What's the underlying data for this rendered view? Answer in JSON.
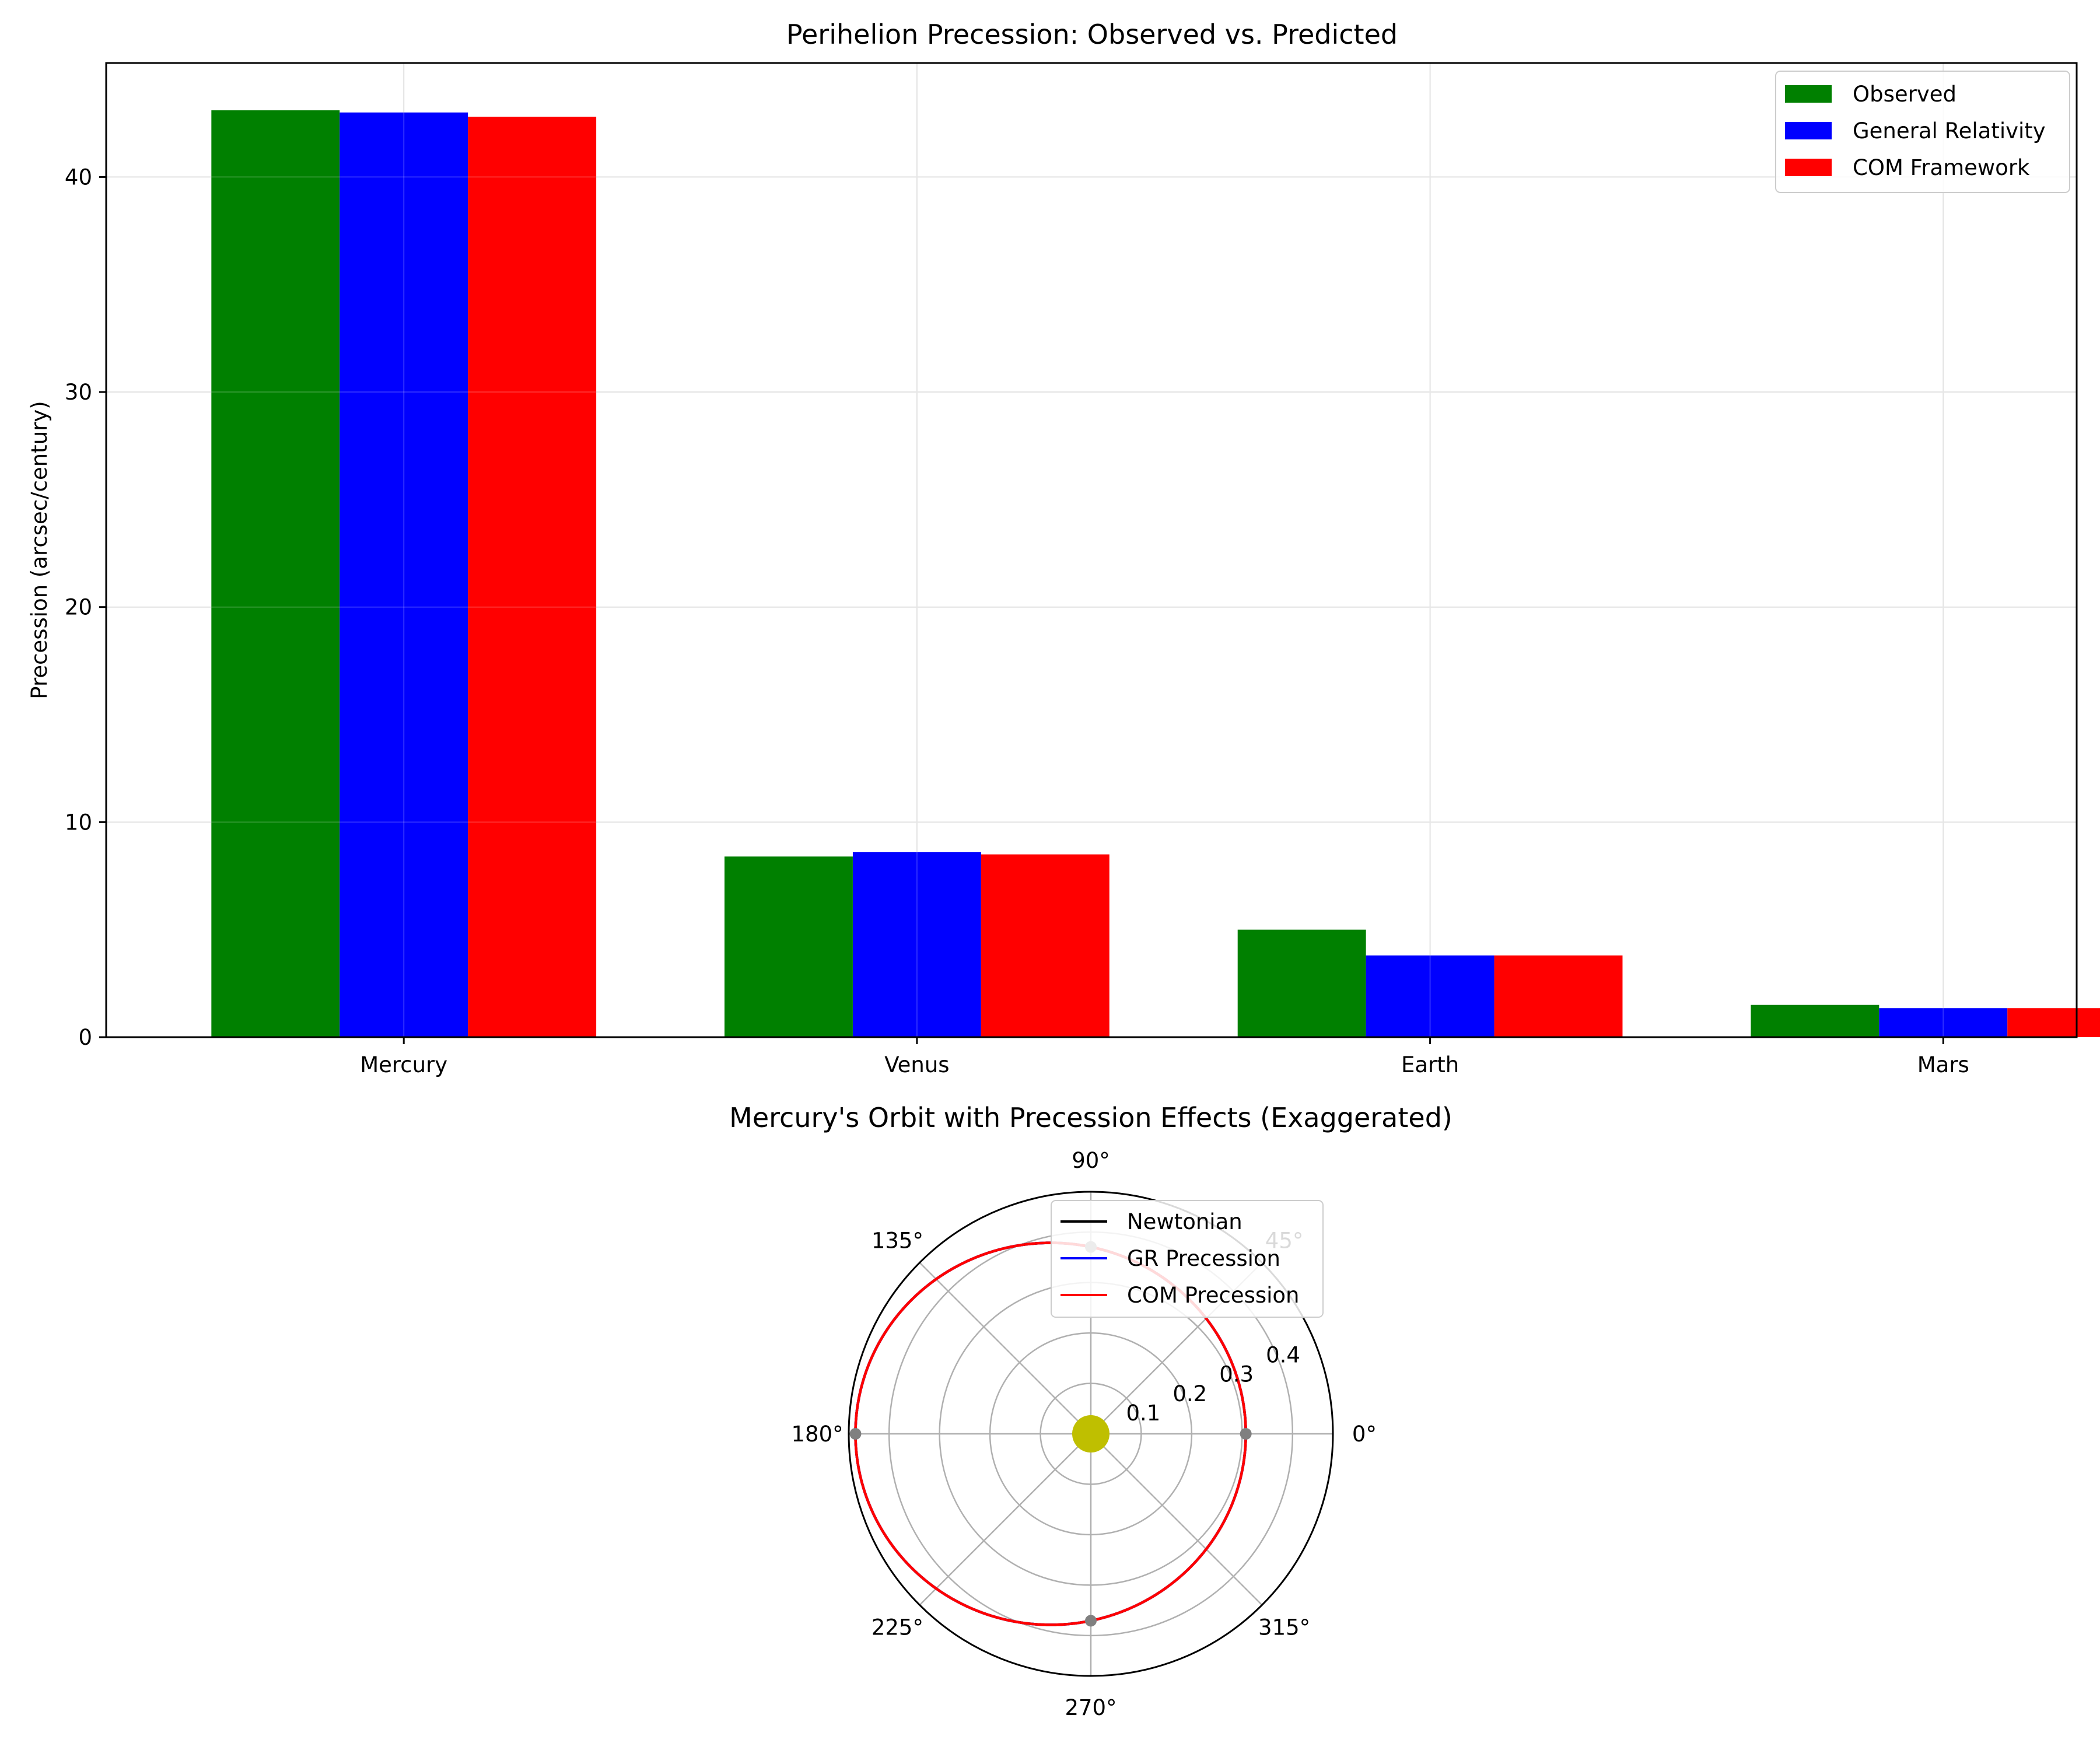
{
  "chart_data": [
    {
      "type": "bar",
      "title": "Perihelion Precession: Observed vs. Predicted",
      "xlabel": "",
      "ylabel": "Precession (arcsec/century)",
      "categories": [
        "Mercury",
        "Venus",
        "Earth",
        "Mars"
      ],
      "series": [
        {
          "name": "Observed",
          "color": "#008000",
          "values": [
            43.1,
            8.4,
            5.0,
            1.5
          ]
        },
        {
          "name": "General Relativity",
          "color": "#0000ff",
          "values": [
            43.0,
            8.6,
            3.8,
            1.35
          ]
        },
        {
          "name": "COM Framework",
          "color": "#ff0000",
          "values": [
            42.8,
            8.5,
            3.8,
            1.35
          ]
        }
      ],
      "ylim": [
        0,
        45.3
      ],
      "yticks": [
        0,
        10,
        20,
        30,
        40
      ],
      "grid": true,
      "legend_position": "top-right"
    },
    {
      "type": "polar-line",
      "title": "Mercury's Orbit with Precession Effects (Exaggerated)",
      "orbit": {
        "semi_major_axis": 0.387,
        "eccentricity": 0.206
      },
      "rlim": [
        0,
        0.48
      ],
      "rticks": [
        0.1,
        0.2,
        0.3,
        0.4
      ],
      "theta_ticks": [
        0,
        45,
        90,
        135,
        180,
        225,
        270,
        315
      ],
      "theta_tick_labels": [
        "0°",
        "45°",
        "90°",
        "135°",
        "180°",
        "225°",
        "270°",
        "315°"
      ],
      "series": [
        {
          "name": "Newtonian",
          "color": "#000000",
          "precession_deg": 0
        },
        {
          "name": "GR Precession",
          "color": "#0000ff",
          "precession_deg": 0
        },
        {
          "name": "COM Precession",
          "color": "#ff0000",
          "precession_deg": 0
        }
      ],
      "markers": {
        "color": "#808080",
        "theta_deg": [
          0,
          90,
          180,
          270
        ]
      },
      "sun": {
        "color": "#bfbf00"
      },
      "grid": true,
      "legend_position": "top-right"
    }
  ]
}
